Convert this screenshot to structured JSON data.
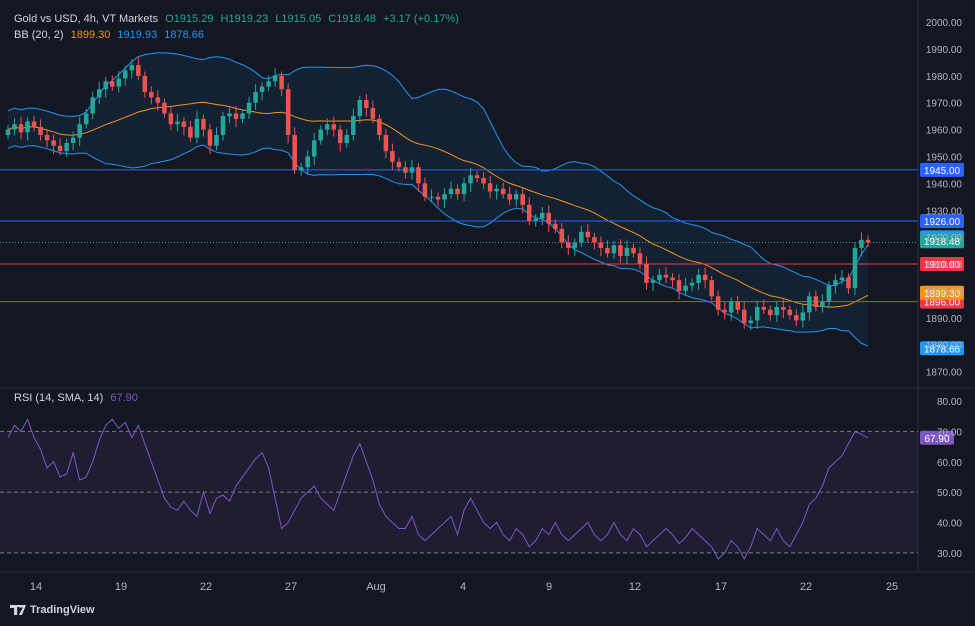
{
  "legend": {
    "symbol": "Gold vs USD, 4h, VT Markets",
    "open": "O1915.29",
    "high": "H1919.23",
    "low": "L1915.05",
    "close": "C1918.48",
    "change": "+3.17 (+0.17%)",
    "bb_label": "BB (20, 2)",
    "bb_mid": "1899.30",
    "bb_upper": "1919.93",
    "bb_lower": "1878.66",
    "rsi_label": "RSI (14, SMA, 14)",
    "rsi_value": "67.90"
  },
  "logo_text": "TradingView",
  "colors": {
    "bg": "#131722",
    "up": "#26a69a",
    "down": "#ef5350",
    "bb_mid": "#f7931a",
    "bb_band": "#2196f3",
    "rsi": "#7e57c2",
    "hline_blue": "#2962ff",
    "hline_red": "#f23645"
  },
  "chart_data": [
    {
      "type": "candlestick",
      "title": "Gold vs USD, 4h, VT Markets",
      "x_ticks": [
        "14",
        "19",
        "22",
        "27",
        "Aug",
        "4",
        "9",
        "12",
        "17",
        "22",
        "25"
      ],
      "y_ticks": [
        "1870.00",
        "1880.00",
        "1890.00",
        "1900.00",
        "1910.00",
        "1920.00",
        "1930.00",
        "1940.00",
        "1950.00",
        "1960.00",
        "1970.00",
        "1980.00",
        "1990.00",
        "2000.00"
      ],
      "ylim": [
        1865,
        2003
      ],
      "horizontal_lines": [
        {
          "value": 1945.0,
          "label": "1945.00",
          "color": "#2962ff"
        },
        {
          "value": 1926.0,
          "label": "1926.00",
          "color": "#2962ff"
        },
        {
          "value": 1910.0,
          "label": "1910.00",
          "color": "#f23645"
        },
        {
          "value": 1896.0,
          "label": "1896.00",
          "color": "#f23645"
        }
      ],
      "price_labels": [
        {
          "value": 1919.93,
          "label": "1919.93",
          "color": "#2196f3"
        },
        {
          "value": 1918.48,
          "label": "1918.48",
          "color": "#26a69a"
        },
        {
          "value": 1899.3,
          "label": "1899.30",
          "color": "#f7931a"
        },
        {
          "value": 1878.66,
          "label": "1878.66",
          "color": "#2196f3"
        }
      ],
      "close": [
        1960,
        1962,
        1959,
        1963,
        1961,
        1958,
        1956,
        1954,
        1952,
        1955,
        1957,
        1962,
        1966,
        1972,
        1975,
        1978,
        1976,
        1979,
        1982,
        1984,
        1980,
        1974,
        1972,
        1970,
        1966,
        1962,
        1963,
        1961,
        1957,
        1964,
        1960,
        1954,
        1958,
        1965,
        1966,
        1964,
        1966,
        1970,
        1974,
        1976,
        1978,
        1980,
        1975,
        1958,
        1945,
        1946,
        1950,
        1956,
        1960,
        1962,
        1960,
        1955,
        1958,
        1965,
        1971,
        1968,
        1964,
        1958,
        1952,
        1948,
        1946,
        1944,
        1946,
        1940,
        1935,
        1935,
        1934,
        1936,
        1938,
        1936,
        1940,
        1943,
        1942,
        1940,
        1937,
        1938,
        1936,
        1934,
        1936,
        1932,
        1926,
        1927,
        1929,
        1925,
        1923,
        1918,
        1916,
        1918,
        1922,
        1920,
        1918,
        1916,
        1914,
        1917,
        1913,
        1916,
        1914,
        1910,
        1903,
        1904,
        1906,
        1905,
        1904,
        1900,
        1902,
        1903,
        1906,
        1904,
        1898,
        1893,
        1892,
        1896,
        1893,
        1888,
        1889,
        1894,
        1893,
        1891,
        1894,
        1893,
        1891,
        1889,
        1892,
        1898,
        1894,
        1896,
        1902,
        1904,
        1905,
        1901,
        1916,
        1919,
        1918
      ],
      "rsi": {
        "ylim": [
          25,
          82
        ],
        "y_ticks": [
          "30.00",
          "40.00",
          "50.00",
          "60.00",
          "70.00",
          "80.00"
        ],
        "levels": [
          30,
          50,
          70
        ],
        "values": [
          68,
          72,
          70,
          74,
          68,
          64,
          58,
          60,
          55,
          56,
          63,
          54,
          55,
          60,
          67,
          72,
          74,
          71,
          73,
          68,
          72,
          66,
          60,
          54,
          48,
          45,
          44,
          47,
          44,
          42,
          50,
          43,
          48,
          49,
          47,
          52,
          55,
          58,
          61,
          63,
          58,
          48,
          38,
          40,
          44,
          48,
          50,
          52,
          48,
          46,
          44,
          50,
          56,
          62,
          66,
          60,
          54,
          46,
          42,
          40,
          38,
          38,
          42,
          36,
          34,
          36,
          38,
          40,
          42,
          36,
          44,
          48,
          44,
          40,
          38,
          40,
          36,
          34,
          38,
          36,
          32,
          34,
          38,
          36,
          40,
          36,
          34,
          36,
          38,
          40,
          36,
          34,
          36,
          40,
          36,
          34,
          38,
          36,
          32,
          34,
          36,
          38,
          36,
          33,
          35,
          38,
          36,
          34,
          32,
          28,
          30,
          34,
          32,
          28,
          32,
          38,
          36,
          34,
          38,
          34,
          32,
          36,
          40,
          46,
          48,
          52,
          58,
          60,
          62,
          66,
          70,
          69,
          67.9
        ]
      }
    }
  ]
}
